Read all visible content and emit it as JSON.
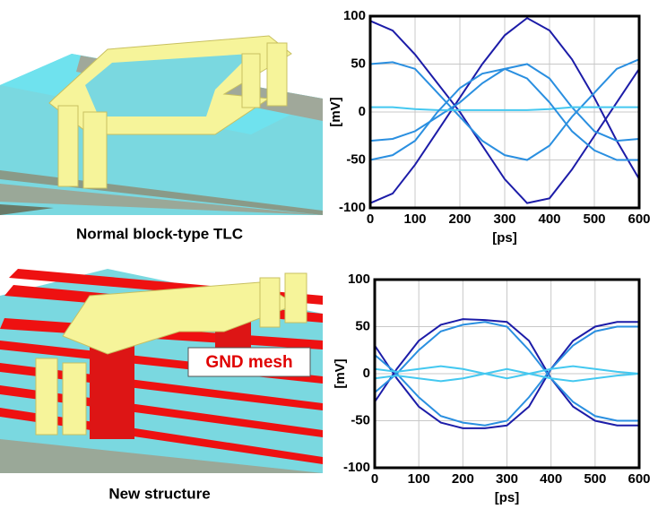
{
  "panels": [
    {
      "caption": "Normal block-type TLC"
    },
    {
      "caption": "New structure",
      "annotation": "GND mesh"
    }
  ],
  "chart_data": [
    {
      "type": "line",
      "xlabel": "[ps]",
      "ylabel": "[mV]",
      "xlim": [
        0,
        600
      ],
      "ylim": [
        -100,
        100
      ],
      "xticks": [
        0,
        100,
        200,
        300,
        400,
        500,
        600
      ],
      "yticks": [
        -100,
        -50,
        0,
        50,
        100
      ],
      "grid": true,
      "x": [
        0,
        50,
        100,
        150,
        200,
        250,
        300,
        350,
        400,
        450,
        500,
        550,
        600
      ],
      "series": [
        {
          "color": "#1c1ca8",
          "values": [
            95,
            85,
            60,
            30,
            0,
            -35,
            -70,
            -95,
            -90,
            -60,
            -25,
            10,
            45
          ]
        },
        {
          "color": "#1c1ca8",
          "values": [
            -95,
            -85,
            -55,
            -20,
            15,
            50,
            80,
            98,
            85,
            55,
            15,
            -30,
            -70
          ]
        },
        {
          "color": "#2a8fe0",
          "values": [
            50,
            52,
            45,
            20,
            -5,
            -30,
            -45,
            -50,
            -35,
            -5,
            20,
            45,
            55
          ]
        },
        {
          "color": "#2a8fe0",
          "values": [
            -30,
            -28,
            -20,
            -5,
            10,
            30,
            45,
            50,
            35,
            5,
            -20,
            -30,
            -28
          ]
        },
        {
          "color": "#44c8f0",
          "values": [
            5,
            5,
            3,
            2,
            2,
            2,
            2,
            2,
            3,
            5,
            5,
            5,
            5
          ]
        },
        {
          "color": "#2a8fe0",
          "values": [
            -50,
            -45,
            -30,
            0,
            25,
            40,
            45,
            35,
            10,
            -20,
            -40,
            -50,
            -50
          ]
        }
      ]
    },
    {
      "type": "line",
      "xlabel": "[ps]",
      "ylabel": "[mV]",
      "xlim": [
        0,
        600
      ],
      "ylim": [
        -100,
        100
      ],
      "xticks": [
        0,
        100,
        200,
        300,
        400,
        500,
        600
      ],
      "yticks": [
        -100,
        -50,
        0,
        50,
        100
      ],
      "grid": true,
      "x": [
        0,
        50,
        100,
        150,
        200,
        250,
        300,
        350,
        400,
        450,
        500,
        550,
        600
      ],
      "series": [
        {
          "color": "#1c1ca8",
          "values": [
            30,
            -5,
            -35,
            -52,
            -58,
            -58,
            -55,
            -35,
            5,
            35,
            50,
            55,
            55
          ]
        },
        {
          "color": "#1c1ca8",
          "values": [
            -30,
            5,
            35,
            52,
            58,
            57,
            55,
            35,
            -5,
            -35,
            -50,
            -55,
            -55
          ]
        },
        {
          "color": "#2a8fe0",
          "values": [
            20,
            0,
            -25,
            -45,
            -52,
            -55,
            -50,
            -25,
            5,
            30,
            45,
            50,
            50
          ]
        },
        {
          "color": "#2a8fe0",
          "values": [
            -20,
            0,
            25,
            45,
            52,
            55,
            50,
            25,
            -5,
            -30,
            -45,
            -50,
            -50
          ]
        },
        {
          "color": "#44c8f0",
          "values": [
            5,
            2,
            5,
            8,
            5,
            0,
            -5,
            0,
            5,
            8,
            5,
            2,
            0
          ]
        },
        {
          "color": "#44c8f0",
          "values": [
            -5,
            -2,
            -5,
            -8,
            -5,
            0,
            5,
            0,
            -5,
            -8,
            -5,
            -2,
            0
          ]
        }
      ]
    }
  ]
}
